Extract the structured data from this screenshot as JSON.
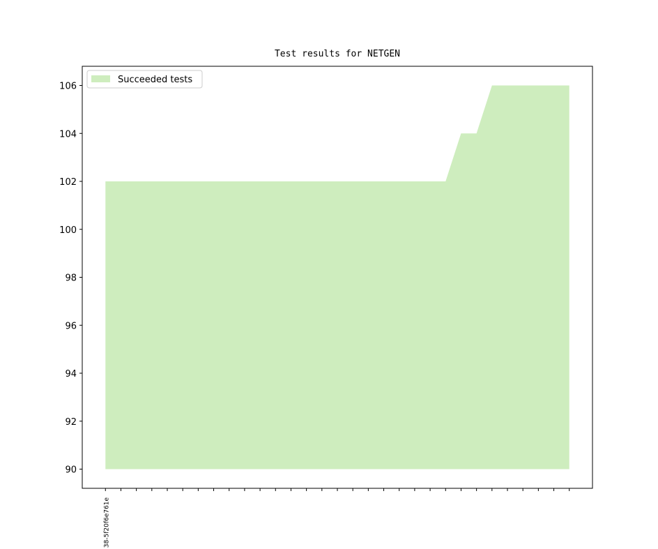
{
  "chart_data": {
    "type": "area",
    "title": "Test results for NETGEN",
    "categories": [
      "38-5f20f6e761e",
      null,
      null,
      null,
      null,
      null,
      null,
      null,
      null,
      null,
      null,
      null,
      null,
      null,
      null,
      null,
      null,
      null,
      null,
      null,
      null,
      null,
      null,
      null,
      null,
      null,
      null,
      null,
      null,
      null,
      null
    ],
    "series": [
      {
        "name": "Succeeded tests",
        "color": "#ceedbe",
        "values": [
          102,
          102,
          102,
          102,
          102,
          102,
          102,
          102,
          102,
          102,
          102,
          102,
          102,
          102,
          102,
          102,
          102,
          102,
          102,
          102,
          102,
          102,
          102,
          104,
          104,
          106,
          106,
          106,
          106,
          106,
          106
        ]
      }
    ],
    "baseline": 90,
    "xlim": [
      -1.5,
      31.5
    ],
    "ylim": [
      89.2,
      106.8
    ],
    "yticks": [
      90,
      92,
      94,
      96,
      98,
      100,
      102,
      104,
      106
    ],
    "legend": "upper-left"
  }
}
